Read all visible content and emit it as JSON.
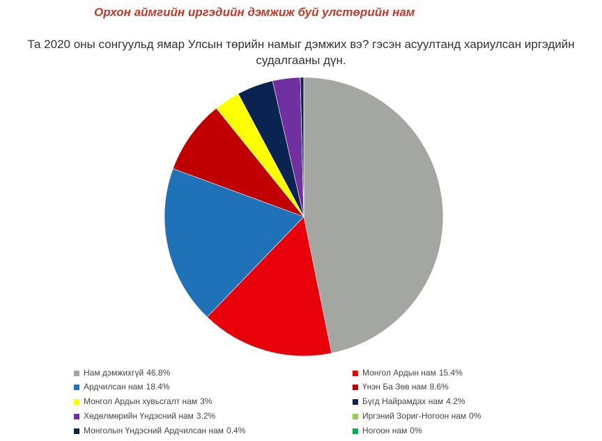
{
  "chart_data": {
    "type": "pie",
    "title": "Орхон аймгийн иргэдийн дэмжиж буй улстөрийн нам",
    "subtitle": "Та 2020 оны сонгуульд ямар Улсын төрийн намыг дэмжих вэ? гэсэн асуултанд хариулсан иргэдийн судалгааны дүн.",
    "categories": [
      "Нам дэмжихгүй",
      "Монгол Ардын нам",
      "Ардчилсан нам",
      "Үнэн Ба Зөв нам",
      "Монгол Ардын хувьсгалт нам",
      "Бүгд Найрамдах нам",
      "Хөдөлмөрийн Үндэсний нам",
      "Иргэний Зориг-Ногоон нам",
      "Монголын Үндэсний Ардчилсан нам",
      "Ногоон нам"
    ],
    "values": [
      46.8,
      15.4,
      18.4,
      8.6,
      3,
      4.2,
      3.2,
      0,
      0.4,
      0
    ],
    "value_labels": [
      "46.8%",
      "15.4%",
      "18.4%",
      "8.6%",
      "3%",
      "4.2%",
      "3.2%",
      "0%",
      "0.4%",
      "0%"
    ],
    "colors": [
      "#a4a6a1",
      "#e8000b",
      "#1f72b8",
      "#c00000",
      "#ffff00",
      "#0a2350",
      "#7030a0",
      "#92d050",
      "#0e2841",
      "#00b050"
    ],
    "legend": "bottom"
  }
}
